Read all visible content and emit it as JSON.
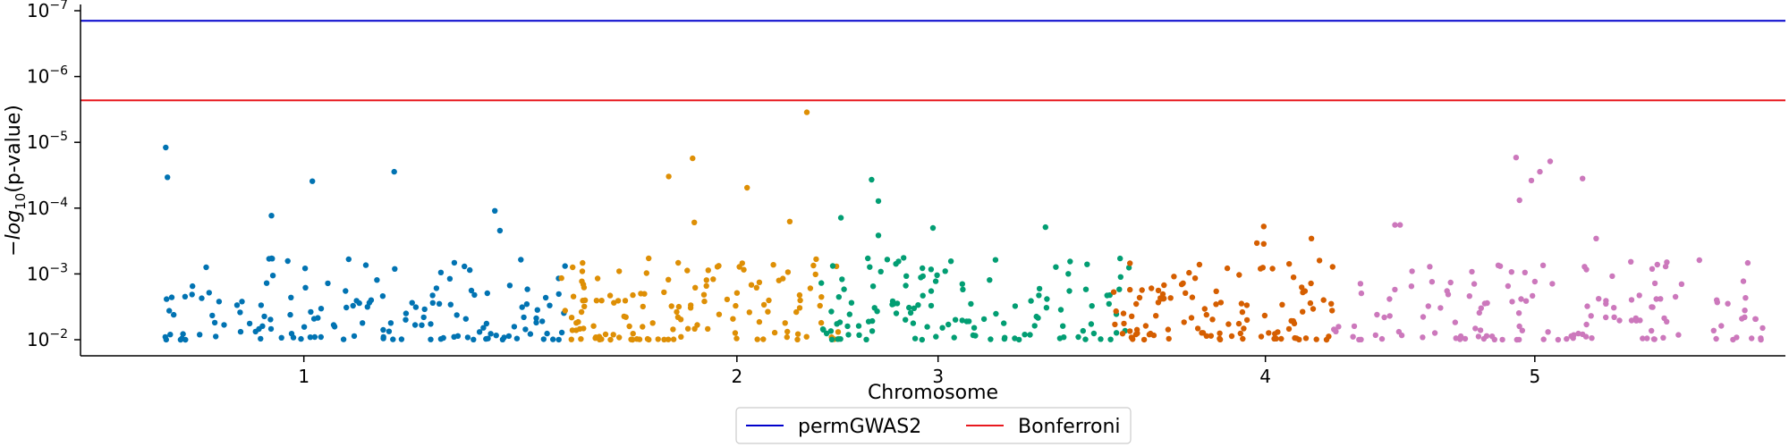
{
  "chart_data": {
    "type": "scatter",
    "title": "",
    "xlabel": "Chromosome",
    "ylabel": "−log10(p-value)",
    "ylabel_parts": {
      "pre": "−",
      "italic": "log",
      "sub": "10",
      "post": "(p-value)"
    },
    "y_scale": "log",
    "ylim": [
      0.018,
      1e-07
    ],
    "y_ticks": [
      {
        "value": 0.01,
        "label": "10",
        "exp": "−2"
      },
      {
        "value": 0.001,
        "label": "10",
        "exp": "−3"
      },
      {
        "value": 0.0001,
        "label": "10",
        "exp": "−4"
      },
      {
        "value": 1e-05,
        "label": "10",
        "exp": "−5"
      },
      {
        "value": 1e-06,
        "label": "10",
        "exp": "−6"
      },
      {
        "value": 1e-07,
        "label": "10",
        "exp": "−7"
      }
    ],
    "xlim": [
      0,
      1
    ],
    "x_ticks": [
      {
        "value": 0.131,
        "label": "1"
      },
      {
        "value": 0.385,
        "label": "2"
      },
      {
        "value": 0.503,
        "label": "3"
      },
      {
        "value": 0.695,
        "label": "4"
      },
      {
        "value": 0.853,
        "label": "5"
      }
    ],
    "grid": false,
    "chromosomes": [
      {
        "name": "1",
        "start": 0.045,
        "end": 0.285,
        "color": "#0173b2",
        "seed": 11,
        "n": 150,
        "peaks": [
          [
            0.05,
            1.2e-05
          ],
          [
            0.051,
            3.4e-05
          ],
          [
            0.136,
            3.9e-05
          ],
          [
            0.184,
            2.8e-05
          ],
          [
            0.112,
            0.00013
          ],
          [
            0.243,
            0.00011
          ],
          [
            0.246,
            0.00022
          ]
        ]
      },
      {
        "name": "2",
        "start": 0.282,
        "end": 0.445,
        "color": "#de8f05",
        "seed": 23,
        "n": 135,
        "peaks": [
          [
            0.426,
            3.5e-06
          ],
          [
            0.359,
            1.75e-05
          ],
          [
            0.345,
            3.3e-05
          ],
          [
            0.391,
            4.9e-05
          ],
          [
            0.416,
            0.00016
          ],
          [
            0.36,
            0.000165
          ]
        ]
      },
      {
        "name": "3",
        "start": 0.432,
        "end": 0.62,
        "color": "#029e73",
        "seed": 37,
        "n": 125,
        "peaks": [
          [
            0.464,
            3.7e-05
          ],
          [
            0.468,
            7.8e-05
          ],
          [
            0.446,
            0.00014
          ],
          [
            0.566,
            0.000195
          ],
          [
            0.5,
            0.0002
          ],
          [
            0.468,
            0.00026
          ]
        ]
      },
      {
        "name": "4",
        "start": 0.605,
        "end": 0.735,
        "color": "#d55e00",
        "seed": 53,
        "n": 110,
        "peaks": [
          [
            0.694,
            0.00019
          ],
          [
            0.722,
            0.00029
          ],
          [
            0.694,
            0.00035
          ],
          [
            0.69,
            0.00034
          ]
        ]
      },
      {
        "name": "5",
        "start": 0.735,
        "end": 0.99,
        "color": "#cc78bc",
        "seed": 71,
        "n": 140,
        "peaks": [
          [
            0.842,
            1.7e-05
          ],
          [
            0.862,
            1.95e-05
          ],
          [
            0.856,
            2.8e-05
          ],
          [
            0.851,
            3.8e-05
          ],
          [
            0.881,
            3.55e-05
          ],
          [
            0.844,
            7.6e-05
          ],
          [
            0.771,
            0.00018
          ],
          [
            0.774,
            0.00018
          ],
          [
            0.889,
            0.00029
          ]
        ]
      }
    ],
    "hlines": [
      {
        "name": "permGWAS2",
        "value": 1.42e-07,
        "color": "#0000cc"
      },
      {
        "name": "Bonferroni",
        "value": 2.3e-06,
        "color": "#e8191f"
      }
    ],
    "legend": {
      "placement": "bottom-center",
      "entries": [
        {
          "label": "permGWAS2",
          "color": "#0000cc"
        },
        {
          "label": "Bonferroni",
          "color": "#e8191f"
        }
      ]
    }
  }
}
